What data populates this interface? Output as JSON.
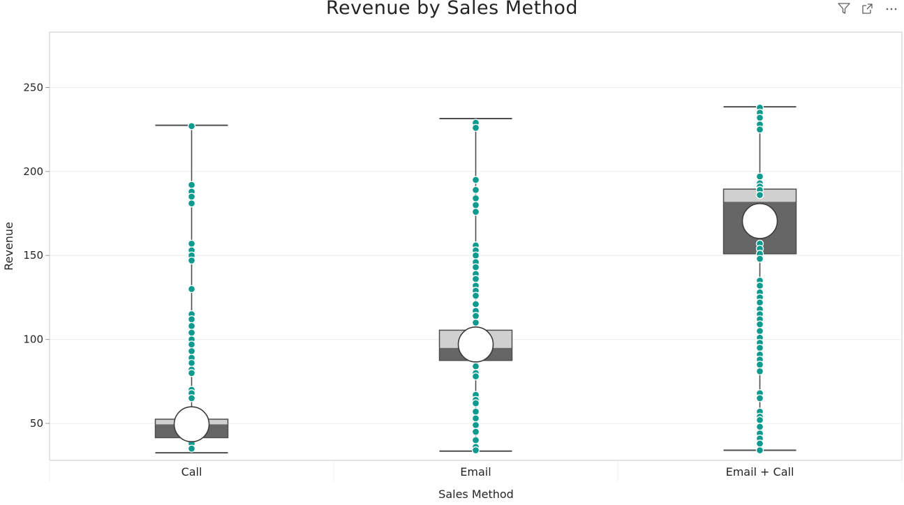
{
  "visual": {
    "title": "Revenue by Sales Method",
    "header_icons": [
      "filter-icon",
      "focus-mode-icon",
      "more-options-icon"
    ]
  },
  "chart_data": {
    "type": "box",
    "title": "Revenue by Sales Method",
    "xlabel": "Sales Method",
    "ylabel": "Revenue",
    "ylim": [
      28,
      283
    ],
    "yticks": [
      50,
      100,
      150,
      200,
      250
    ],
    "grid": true,
    "categories": [
      "Call",
      "Email",
      "Email + Call"
    ],
    "boxes": [
      {
        "category": "Call",
        "min": 32.5,
        "q1": 41.5,
        "median": 49.5,
        "q3": 52.5,
        "max": 227.5,
        "mean": 49.5
      },
      {
        "category": "Email",
        "min": 33.5,
        "q1": 87.5,
        "median": 95,
        "q3": 105.5,
        "max": 231.5,
        "mean": 97
      },
      {
        "category": "Email + Call",
        "min": 34,
        "q1": 151,
        "median": 182,
        "q3": 189.5,
        "max": 238.5,
        "mean": 170.5
      }
    ],
    "points": [
      {
        "category": "Call",
        "values": [
          227,
          192,
          188,
          185,
          181,
          157,
          153,
          150,
          147,
          130,
          115,
          112,
          108,
          104,
          100,
          97,
          93,
          89,
          86,
          82,
          80,
          70,
          68,
          65,
          52,
          48,
          45,
          42,
          38,
          35
        ]
      },
      {
        "category": "Email",
        "values": [
          229,
          226,
          195,
          189,
          184,
          180,
          176,
          156,
          153,
          150,
          146,
          143,
          139,
          136,
          132,
          129,
          126,
          121,
          117,
          114,
          110,
          104,
          101,
          98,
          91,
          88,
          84,
          80,
          78,
          67,
          64,
          62,
          57,
          53,
          49,
          45,
          40,
          36,
          34
        ]
      },
      {
        "category": "Email + Call",
        "values": [
          238,
          235,
          232,
          228,
          225,
          197,
          193,
          191,
          189,
          186,
          157,
          154,
          151,
          148,
          135,
          132,
          128,
          125,
          122,
          118,
          115,
          112,
          109,
          105,
          101,
          98,
          95,
          91,
          88,
          85,
          81,
          68,
          65,
          57,
          54,
          52,
          48,
          44,
          41,
          38,
          34
        ]
      }
    ],
    "colors": {
      "box_lower": "#666666",
      "box_upper": "#d0d0d0",
      "whisker": "#4d4d4d",
      "point": "#0e9a8e",
      "mean_marker": "#ffffff",
      "grid": "#ececec",
      "frame": "#c8c8c8"
    }
  }
}
